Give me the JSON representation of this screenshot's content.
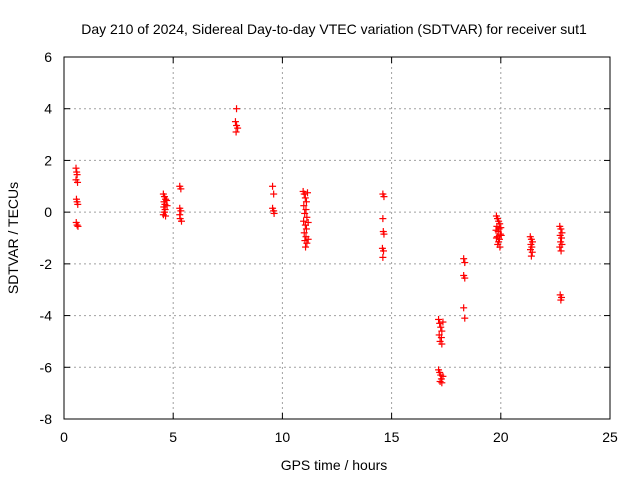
{
  "chart_data": {
    "type": "scatter",
    "title": "Day 210 of 2024, Sidereal Day-to-day VTEC variation (SDTVAR) for receiver sut1",
    "xlabel": "GPS time / hours",
    "ylabel": "SDTVAR / TECUs",
    "xlim": [
      0,
      25
    ],
    "ylim": [
      -8,
      6
    ],
    "xticks": [
      0,
      5,
      10,
      15,
      20,
      25
    ],
    "yticks": [
      -8,
      -6,
      -4,
      -2,
      0,
      2,
      4,
      6
    ],
    "xtick_labels": [
      "0",
      "5",
      "10",
      "15",
      "20",
      "25"
    ],
    "ytick_labels": [
      "-8",
      "-6",
      "-4",
      "-2",
      "0",
      "2",
      "4",
      "6"
    ],
    "grid": true,
    "marker": "+",
    "color": "#ff0000",
    "series": [
      {
        "name": "SDTVAR",
        "points": [
          [
            0.55,
            1.7
          ],
          [
            0.58,
            1.55
          ],
          [
            0.6,
            1.45
          ],
          [
            0.55,
            1.25
          ],
          [
            0.62,
            1.15
          ],
          [
            0.57,
            0.5
          ],
          [
            0.6,
            0.4
          ],
          [
            0.63,
            0.3
          ],
          [
            0.56,
            -0.4
          ],
          [
            0.6,
            -0.5
          ],
          [
            0.64,
            -0.55
          ],
          [
            4.55,
            0.7
          ],
          [
            4.6,
            0.6
          ],
          [
            4.65,
            0.5
          ],
          [
            4.58,
            0.4
          ],
          [
            4.62,
            0.3
          ],
          [
            4.57,
            0.2
          ],
          [
            4.63,
            0.1
          ],
          [
            4.6,
            0.0
          ],
          [
            4.55,
            -0.1
          ],
          [
            4.65,
            -0.15
          ],
          [
            4.7,
            0.45
          ],
          [
            4.72,
            0.25
          ],
          [
            5.3,
            1.0
          ],
          [
            5.35,
            0.9
          ],
          [
            5.3,
            0.15
          ],
          [
            5.35,
            0.05
          ],
          [
            5.3,
            -0.1
          ],
          [
            5.32,
            -0.25
          ],
          [
            5.38,
            -0.35
          ],
          [
            7.9,
            4.0
          ],
          [
            7.85,
            3.5
          ],
          [
            7.9,
            3.35
          ],
          [
            7.95,
            3.25
          ],
          [
            7.88,
            3.1
          ],
          [
            9.55,
            1.0
          ],
          [
            9.6,
            0.7
          ],
          [
            9.55,
            0.15
          ],
          [
            9.6,
            0.05
          ],
          [
            9.62,
            -0.05
          ],
          [
            10.95,
            0.8
          ],
          [
            11.0,
            0.7
          ],
          [
            11.05,
            0.55
          ],
          [
            11.1,
            0.4
          ],
          [
            10.98,
            0.25
          ],
          [
            11.08,
            0.1
          ],
          [
            11.02,
            -0.05
          ],
          [
            11.12,
            -0.2
          ],
          [
            10.97,
            -0.35
          ],
          [
            11.05,
            -0.5
          ],
          [
            11.1,
            -0.65
          ],
          [
            11.0,
            -0.8
          ],
          [
            11.08,
            -0.95
          ],
          [
            11.03,
            -1.1
          ],
          [
            11.12,
            -1.2
          ],
          [
            11.06,
            -1.35
          ],
          [
            11.15,
            0.75
          ],
          [
            11.18,
            -0.4
          ],
          [
            11.18,
            -1.05
          ],
          [
            14.6,
            0.7
          ],
          [
            14.65,
            0.6
          ],
          [
            14.6,
            -0.25
          ],
          [
            14.62,
            -0.75
          ],
          [
            14.65,
            -0.85
          ],
          [
            14.58,
            -1.4
          ],
          [
            14.63,
            -1.5
          ],
          [
            14.6,
            -1.75
          ],
          [
            17.15,
            -4.15
          ],
          [
            17.2,
            -4.3
          ],
          [
            17.25,
            -4.45
          ],
          [
            17.3,
            -4.6
          ],
          [
            17.18,
            -4.75
          ],
          [
            17.28,
            -4.85
          ],
          [
            17.22,
            -5.0
          ],
          [
            17.3,
            -5.1
          ],
          [
            17.15,
            -6.1
          ],
          [
            17.2,
            -6.2
          ],
          [
            17.25,
            -6.3
          ],
          [
            17.28,
            -6.45
          ],
          [
            17.22,
            -6.55
          ],
          [
            17.3,
            -6.6
          ],
          [
            17.35,
            -4.25
          ],
          [
            17.35,
            -6.35
          ],
          [
            18.3,
            -1.8
          ],
          [
            18.35,
            -1.95
          ],
          [
            18.3,
            -2.45
          ],
          [
            18.35,
            -2.55
          ],
          [
            18.3,
            -3.7
          ],
          [
            18.35,
            -4.1
          ],
          [
            19.8,
            -0.15
          ],
          [
            19.85,
            -0.25
          ],
          [
            19.9,
            -0.35
          ],
          [
            19.95,
            -0.45
          ],
          [
            19.82,
            -0.55
          ],
          [
            19.92,
            -0.65
          ],
          [
            19.88,
            -0.75
          ],
          [
            19.98,
            -0.85
          ],
          [
            19.84,
            -0.95
          ],
          [
            19.94,
            -1.05
          ],
          [
            19.9,
            -1.15
          ],
          [
            19.86,
            -1.25
          ],
          [
            19.96,
            -1.35
          ],
          [
            20.0,
            -0.6
          ],
          [
            20.02,
            -0.9
          ],
          [
            19.78,
            -0.7
          ],
          [
            19.8,
            -1.0
          ],
          [
            21.35,
            -0.95
          ],
          [
            21.4,
            -1.05
          ],
          [
            21.45,
            -1.15
          ],
          [
            21.38,
            -1.25
          ],
          [
            21.42,
            -1.35
          ],
          [
            21.36,
            -1.45
          ],
          [
            21.44,
            -1.55
          ],
          [
            21.4,
            -1.7
          ],
          [
            22.7,
            -0.55
          ],
          [
            22.75,
            -0.65
          ],
          [
            22.8,
            -0.8
          ],
          [
            22.72,
            -0.9
          ],
          [
            22.78,
            -1.0
          ],
          [
            22.74,
            -1.15
          ],
          [
            22.8,
            -1.25
          ],
          [
            22.7,
            -1.35
          ],
          [
            22.76,
            -1.5
          ],
          [
            22.72,
            -3.2
          ],
          [
            22.78,
            -3.3
          ],
          [
            22.75,
            -3.4
          ]
        ]
      }
    ]
  }
}
